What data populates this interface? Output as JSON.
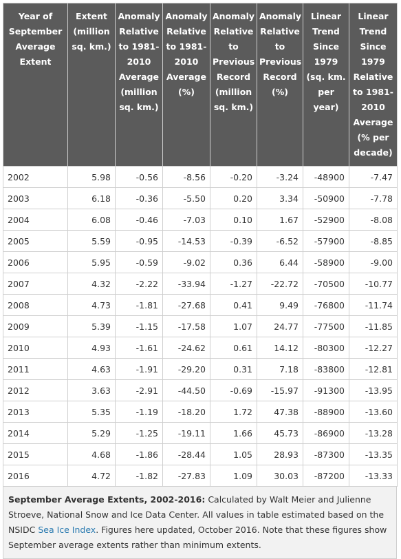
{
  "table": {
    "headers": [
      "Year of September Average Extent",
      "Extent (million sq. km.)",
      "Anomaly Relative to 1981-2010 Average (million sq. km.)",
      "Anomaly Relative to 1981-2010 Average (%)",
      "Anomaly Relative to Previous Record (million sq. km.)",
      "Anomaly Relative to Previous Record (%)",
      "Linear Trend Since 1979 (sq. km. per year)",
      "Linear Trend Since 1979 Relative to 1981-2010 Average (% per decade)"
    ],
    "rows": [
      [
        "2002",
        "5.98",
        "-0.56",
        "-8.56",
        "-0.20",
        "-3.24",
        "-48900",
        "-7.47"
      ],
      [
        "2003",
        "6.18",
        "-0.36",
        "-5.50",
        "0.20",
        "3.34",
        "-50900",
        "-7.78"
      ],
      [
        "2004",
        "6.08",
        "-0.46",
        "-7.03",
        "0.10",
        "1.67",
        "-52900",
        "-8.08"
      ],
      [
        "2005",
        "5.59",
        "-0.95",
        "-14.53",
        "-0.39",
        "-6.52",
        "-57900",
        "-8.85"
      ],
      [
        "2006",
        "5.95",
        "-0.59",
        "-9.02",
        "0.36",
        "6.44",
        "-58900",
        "-9.00"
      ],
      [
        "2007",
        "4.32",
        "-2.22",
        "-33.94",
        "-1.27",
        "-22.72",
        "-70500",
        "-10.77"
      ],
      [
        "2008",
        "4.73",
        "-1.81",
        "-27.68",
        "0.41",
        "9.49",
        "-76800",
        "-11.74"
      ],
      [
        "2009",
        "5.39",
        "-1.15",
        "-17.58",
        "1.07",
        "24.77",
        "-77500",
        "-11.85"
      ],
      [
        "2010",
        "4.93",
        "-1.61",
        "-24.62",
        "0.61",
        "14.12",
        "-80300",
        "-12.27"
      ],
      [
        "2011",
        "4.63",
        "-1.91",
        "-29.20",
        "0.31",
        "7.18",
        "-83800",
        "-12.81"
      ],
      [
        "2012",
        "3.63",
        "-2.91",
        "-44.50",
        "-0.69",
        "-15.97",
        "-91300",
        "-13.95"
      ],
      [
        "2013",
        "5.35",
        "-1.19",
        "-18.20",
        "1.72",
        "47.38",
        "-88900",
        "-13.60"
      ],
      [
        "2014",
        "5.29",
        "-1.25",
        "-19.11",
        "1.66",
        "45.73",
        "-86900",
        "-13.28"
      ],
      [
        "2015",
        "4.68",
        "-1.86",
        "-28.44",
        "1.05",
        "28.93",
        "-87300",
        "-13.35"
      ],
      [
        "2016",
        "4.72",
        "-1.82",
        "-27.83",
        "1.09",
        "30.03",
        "-87200",
        "-13.33"
      ]
    ]
  },
  "caption": {
    "title": "September Average Extents, 2002-2016:",
    "text1": "Calculated by Walt Meier and Julienne Stroeve, National Snow and Ice Data Center. All values in table estimated based on the NSIDC",
    "link": "Sea Ice Index",
    "text2": ". Figures here updated, October 2016. Note that these figures show September average extents rather than minimum extents."
  }
}
